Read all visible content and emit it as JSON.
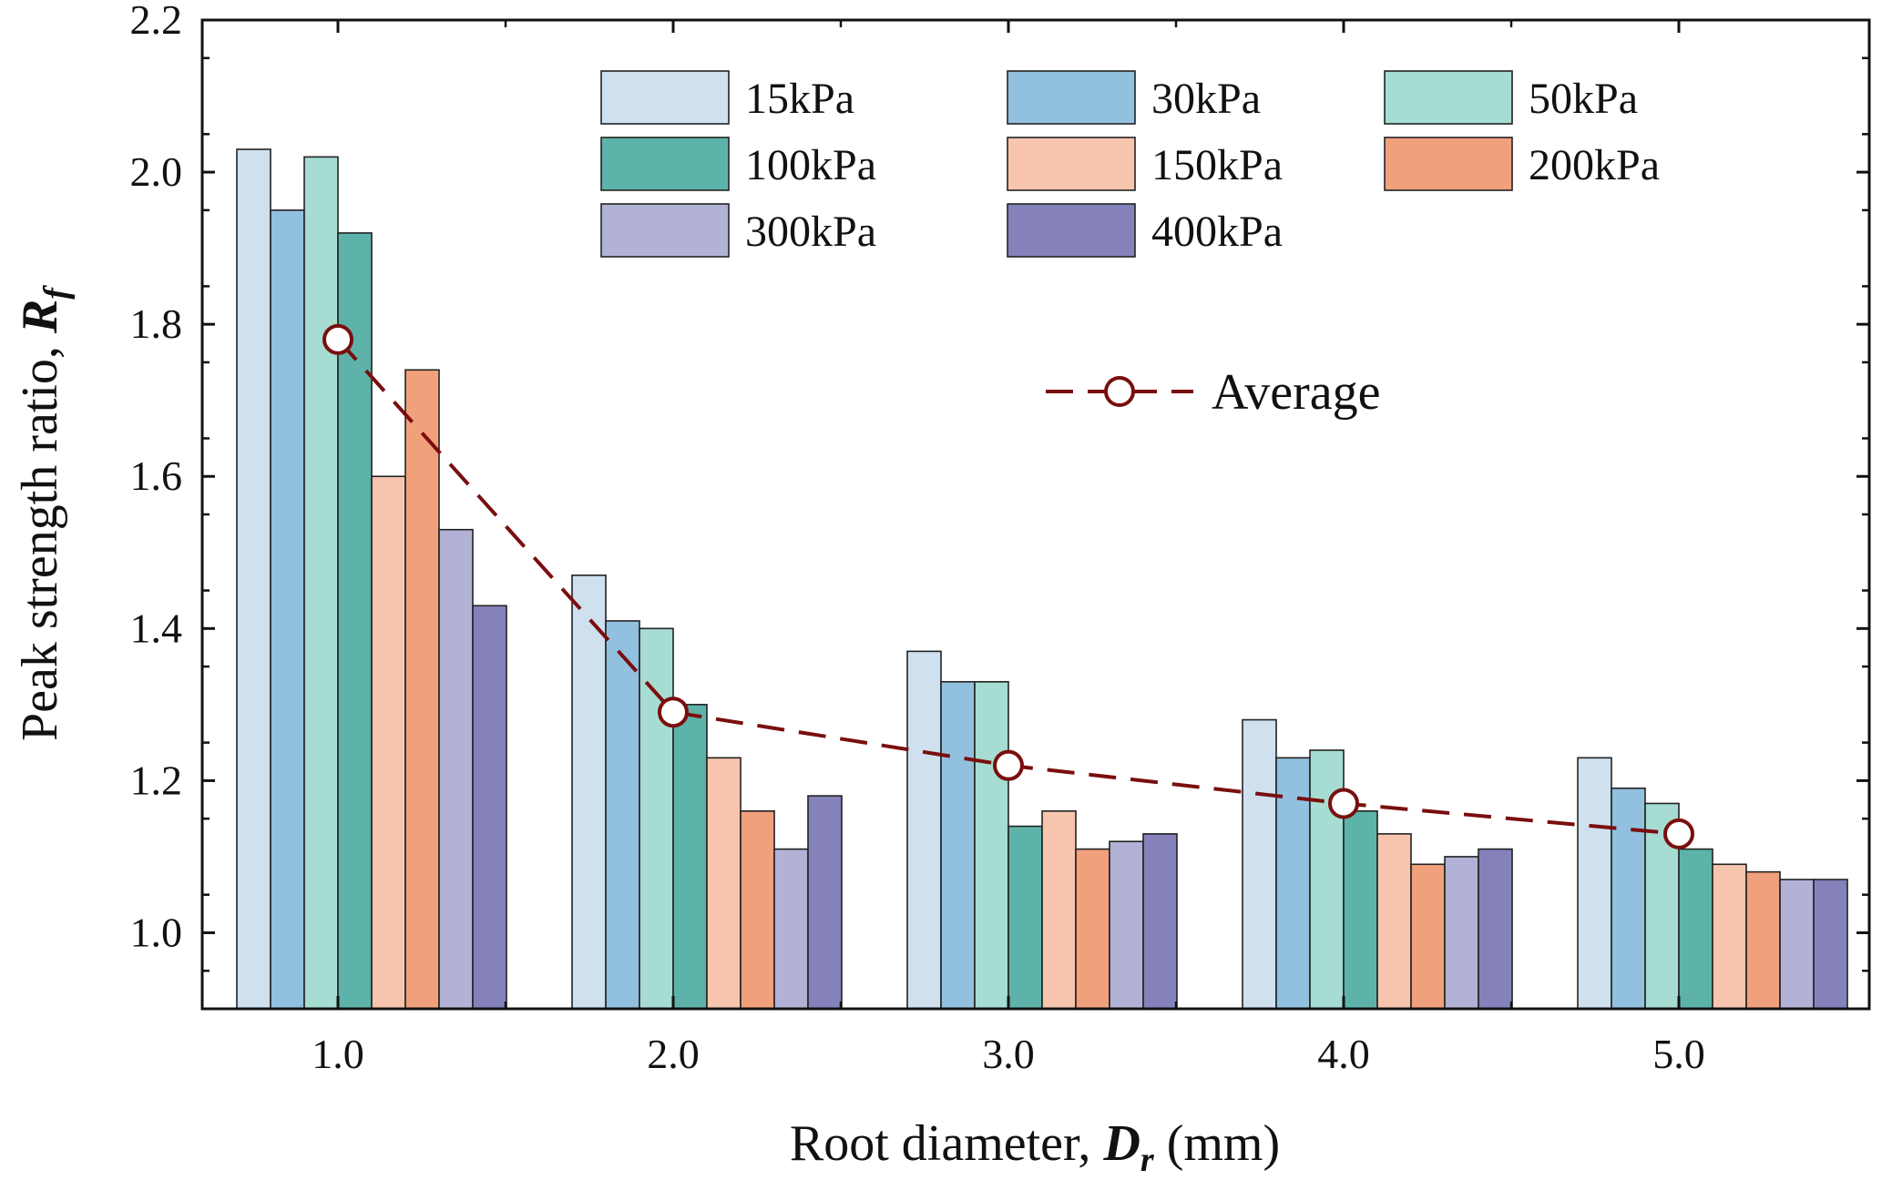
{
  "chart_data": {
    "type": "bar",
    "title": "",
    "xlabel": {
      "main": "Root diameter, ",
      "sym": "D",
      "sub": "r",
      "tail": " (mm)"
    },
    "ylabel": {
      "main": "Peak strength ratio, ",
      "sym": "R",
      "sub": "f"
    },
    "ylim": [
      0.9,
      2.2
    ],
    "yticks": [
      "1.0",
      "1.2",
      "1.4",
      "1.6",
      "1.8",
      "2.0",
      "2.2"
    ],
    "categories": [
      "1.0",
      "2.0",
      "3.0",
      "4.0",
      "5.0"
    ],
    "series": [
      {
        "name": "15kPa",
        "color": "#cfe0ef",
        "values": [
          2.03,
          1.47,
          1.37,
          1.28,
          1.23
        ]
      },
      {
        "name": "30kPa",
        "color": "#92c0df",
        "values": [
          1.95,
          1.41,
          1.33,
          1.23,
          1.19
        ]
      },
      {
        "name": "50kPa",
        "color": "#a6dcd1",
        "values": [
          2.02,
          1.4,
          1.33,
          1.24,
          1.17
        ]
      },
      {
        "name": "100kPa",
        "color": "#5db3a9",
        "values": [
          1.92,
          1.3,
          1.14,
          1.16,
          1.11
        ]
      },
      {
        "name": "150kPa",
        "color": "#f7c5ae",
        "values": [
          1.6,
          1.23,
          1.16,
          1.13,
          1.09
        ]
      },
      {
        "name": "200kPa",
        "color": "#f1a07c",
        "values": [
          1.74,
          1.16,
          1.11,
          1.09,
          1.08
        ]
      },
      {
        "name": "300kPa",
        "color": "#b2b2d7",
        "values": [
          1.53,
          1.11,
          1.12,
          1.1,
          1.07
        ]
      },
      {
        "name": "400kPa",
        "color": "#8582bb",
        "values": [
          1.43,
          1.18,
          1.13,
          1.11,
          1.07
        ]
      }
    ],
    "average": {
      "name": "Average",
      "color": "#7a0e0e",
      "x": [
        "1.0",
        "2.0",
        "3.0",
        "4.0",
        "5.0"
      ],
      "values": [
        1.78,
        1.29,
        1.22,
        1.17,
        1.13
      ]
    },
    "legend": "top",
    "grid": false
  }
}
